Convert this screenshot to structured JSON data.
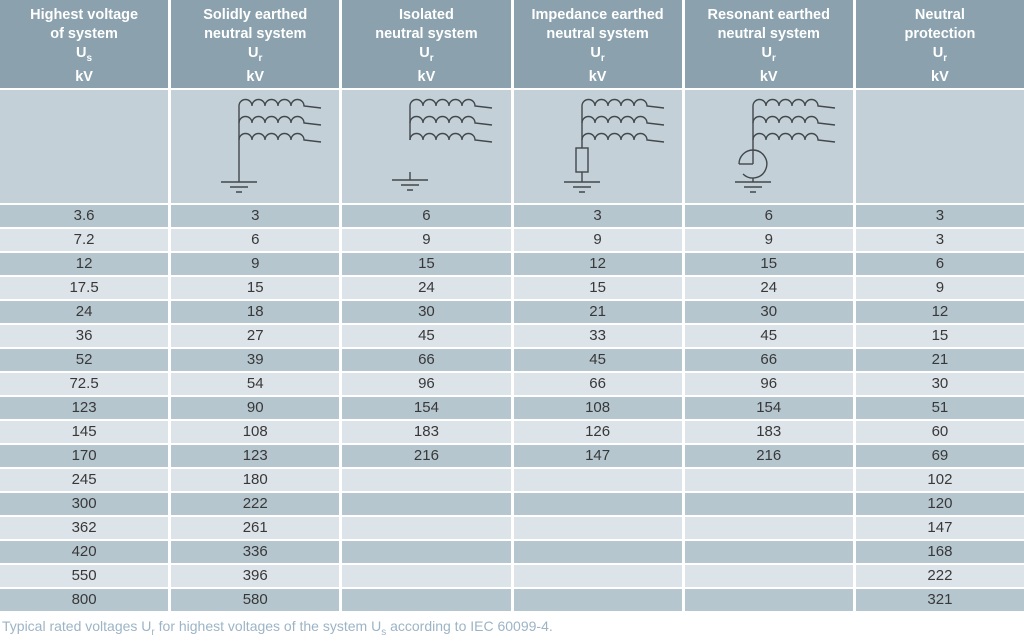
{
  "table": {
    "headers": [
      {
        "line1": "Highest voltage",
        "line2": "of system",
        "symbol": "U",
        "symbol_sub": "s",
        "unit": "kV"
      },
      {
        "line1": "Solidly earthed",
        "line2": "neutral system",
        "symbol": "U",
        "symbol_sub": "r",
        "unit": "kV"
      },
      {
        "line1": "Isolated",
        "line2": "neutral system",
        "symbol": "U",
        "symbol_sub": "r",
        "unit": "kV"
      },
      {
        "line1": "Impedance earthed",
        "line2": "neutral system",
        "symbol": "U",
        "symbol_sub": "r",
        "unit": "kV"
      },
      {
        "line1": "Resonant earthed",
        "line2": "neutral system",
        "symbol": "U",
        "symbol_sub": "r",
        "unit": "kV"
      },
      {
        "line1": "Neutral",
        "line2": "protection",
        "symbol": "U",
        "symbol_sub": "r",
        "unit": "kV"
      }
    ],
    "diagram_icons": [
      "solidly-earthed-neutral-system-diagram",
      "isolated-neutral-system-diagram",
      "impedance-earthed-neutral-system-diagram",
      "resonant-earthed-neutral-system-diagram"
    ],
    "rows": [
      [
        "3.6",
        "3",
        "6",
        "3",
        "6",
        "3"
      ],
      [
        "7.2",
        "6",
        "9",
        "9",
        "9",
        "3"
      ],
      [
        "12",
        "9",
        "15",
        "12",
        "15",
        "6"
      ],
      [
        "17.5",
        "15",
        "24",
        "15",
        "24",
        "9"
      ],
      [
        "24",
        "18",
        "30",
        "21",
        "30",
        "12"
      ],
      [
        "36",
        "27",
        "45",
        "33",
        "45",
        "15"
      ],
      [
        "52",
        "39",
        "66",
        "45",
        "66",
        "21"
      ],
      [
        "72.5",
        "54",
        "96",
        "66",
        "96",
        "30"
      ],
      [
        "123",
        "90",
        "154",
        "108",
        "154",
        "51"
      ],
      [
        "145",
        "108",
        "183",
        "126",
        "183",
        "60"
      ],
      [
        "170",
        "123",
        "216",
        "147",
        "216",
        "69"
      ],
      [
        "245",
        "180",
        "",
        "",
        "",
        "102"
      ],
      [
        "300",
        "222",
        "",
        "",
        "",
        "120"
      ],
      [
        "362",
        "261",
        "",
        "",
        "",
        "147"
      ],
      [
        "420",
        "336",
        "",
        "",
        "",
        "168"
      ],
      [
        "550",
        "396",
        "",
        "",
        "",
        "222"
      ],
      [
        "800",
        "580",
        "",
        "",
        "",
        "321"
      ]
    ]
  },
  "caption": {
    "part1": "Typical rated voltages U",
    "sub1": "r",
    "part2": " for highest voltages of the system U",
    "sub2": "s",
    "part3": " according to IEC 60099-4."
  },
  "colors": {
    "header_bg": "#8ba2ae",
    "diagram_row_bg": "#c4d0d7",
    "row_dark": "#b6c6cf",
    "row_light": "#dce3e9",
    "header_text": "#ffffff",
    "data_text": "#383838",
    "caption_text": "#9db4c6",
    "diagram_stroke": "#41484c",
    "separator": "#ffffff"
  },
  "chart_data": {
    "type": "table",
    "columns": [
      "Highest voltage of system Us (kV)",
      "Solidly earthed neutral system Ur (kV)",
      "Isolated neutral system Ur (kV)",
      "Impedance earthed neutral system Ur (kV)",
      "Resonant earthed neutral system Ur (kV)",
      "Neutral protection Ur (kV)"
    ],
    "rows": [
      [
        3.6,
        3,
        6,
        3,
        6,
        3
      ],
      [
        7.2,
        6,
        9,
        9,
        9,
        3
      ],
      [
        12,
        9,
        15,
        12,
        15,
        6
      ],
      [
        17.5,
        15,
        24,
        15,
        24,
        9
      ],
      [
        24,
        18,
        30,
        21,
        30,
        12
      ],
      [
        36,
        27,
        45,
        33,
        45,
        15
      ],
      [
        52,
        39,
        66,
        45,
        66,
        21
      ],
      [
        72.5,
        54,
        96,
        66,
        96,
        30
      ],
      [
        123,
        90,
        154,
        108,
        154,
        51
      ],
      [
        145,
        108,
        183,
        126,
        183,
        60
      ],
      [
        170,
        123,
        216,
        147,
        216,
        69
      ],
      [
        245,
        180,
        null,
        null,
        null,
        102
      ],
      [
        300,
        222,
        null,
        null,
        null,
        120
      ],
      [
        362,
        261,
        null,
        null,
        null,
        147
      ],
      [
        420,
        336,
        null,
        null,
        null,
        168
      ],
      [
        550,
        396,
        null,
        null,
        null,
        222
      ],
      [
        800,
        580,
        null,
        null,
        null,
        321
      ]
    ],
    "caption": "Typical rated voltages Ur for highest voltages of the system Us according to IEC 60099-4."
  }
}
